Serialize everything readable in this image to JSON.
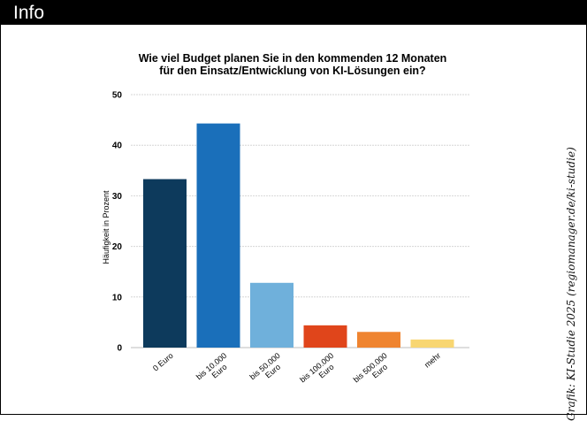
{
  "header": {
    "title": "Info"
  },
  "credit": "Grafik: KI-Studie 2025 (regiomanager.de/ki-studie)",
  "colors": {
    "header_bg": "#000000",
    "bars": [
      "#0d3a5c",
      "#1a6fba",
      "#6fb0db",
      "#e0451b",
      "#ef8430",
      "#f8d672"
    ]
  },
  "chart_data": {
    "type": "bar",
    "title": "Wie viel Budget planen Sie in den kommenden 12 Monaten für den Einsatz/Entwicklung von KI-Lösungen ein?",
    "xlabel": "",
    "ylabel": "Häufigkeit in Prozent",
    "categories": [
      "0 Euro",
      "bis 10.000 Euro",
      "bis 50.000 Euro",
      "bis 100.000 Euro",
      "bis 500.000 Euro",
      "mehr"
    ],
    "values": [
      33.3,
      44.3,
      12.8,
      4.4,
      3.1,
      1.6
    ],
    "ylim": [
      0,
      50
    ],
    "yticks": [
      "0",
      "10",
      "20",
      "30",
      "40",
      "50"
    ],
    "grid": true,
    "legend": "none"
  }
}
